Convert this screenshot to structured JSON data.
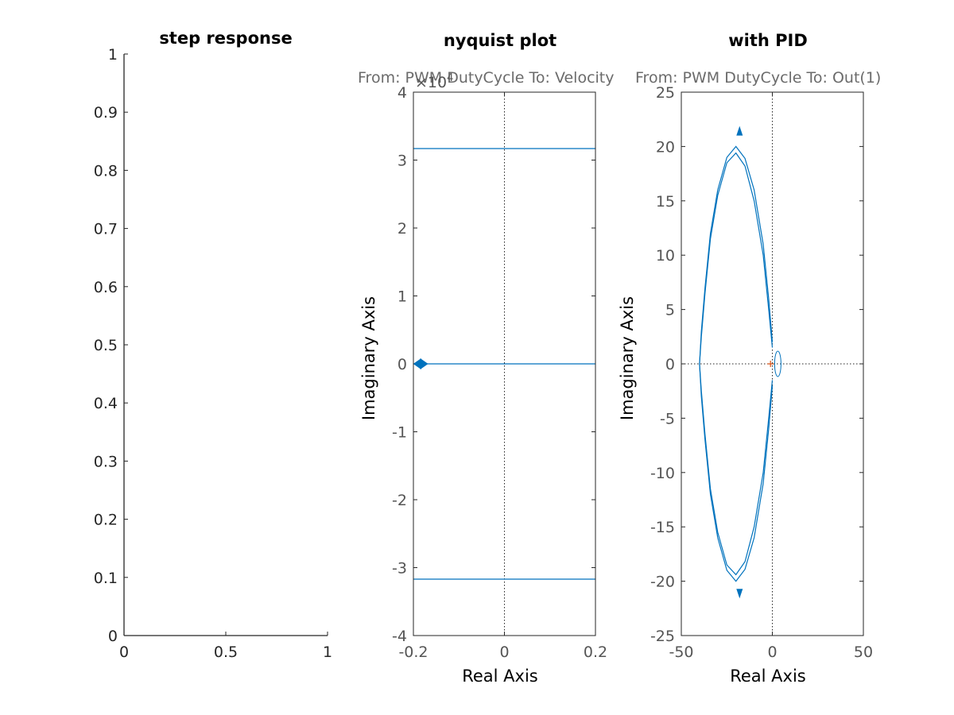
{
  "chart_data": [
    {
      "type": "line",
      "title": "step response",
      "xlabel": "",
      "ylabel": "",
      "xlim": [
        0,
        1
      ],
      "ylim": [
        0,
        1
      ],
      "xticks": [
        "0",
        "0.5",
        "1"
      ],
      "yticks": [
        "0",
        "0.1",
        "0.2",
        "0.3",
        "0.4",
        "0.5",
        "0.6",
        "0.7",
        "0.8",
        "0.9",
        "1"
      ],
      "series": []
    },
    {
      "type": "line",
      "title": "nyquist plot",
      "subtitle": "From: PWM DutyCycle  To: Velocity",
      "xlabel": "Real Axis",
      "ylabel": "Imaginary Axis",
      "xlim": [
        -0.2,
        0.2
      ],
      "ylim": [
        -4,
        4
      ],
      "y_exponent": "×10",
      "y_exponent_power": "4",
      "xticks": [
        "-0.2",
        "0",
        "0.2"
      ],
      "yticks": [
        "-4",
        "-3",
        "-2",
        "-1",
        "0",
        "1",
        "2",
        "3",
        "4"
      ],
      "color": "#0072bd",
      "series": [
        {
          "x": [
            -0.2,
            0.2
          ],
          "y": [
            3.17,
            3.17
          ]
        },
        {
          "x": [
            -0.2,
            0.2
          ],
          "y": [
            0,
            0
          ]
        },
        {
          "x": [
            -0.2,
            0.2
          ],
          "y": [
            -3.17,
            -3.17
          ]
        }
      ]
    },
    {
      "type": "line",
      "title": "with PID",
      "subtitle": "From: PWM DutyCycle  To: Out(1)",
      "xlabel": "Real Axis",
      "ylabel": "Imaginary Axis",
      "xlim": [
        -50,
        50
      ],
      "ylim": [
        -25,
        25
      ],
      "xticks": [
        "-50",
        "0",
        "50"
      ],
      "yticks": [
        "-25",
        "-20",
        "-15",
        "-10",
        "-5",
        "0",
        "5",
        "10",
        "15",
        "20",
        "25"
      ],
      "color": "#0072bd",
      "critical_point_color": "#d95319",
      "series": [
        {
          "x": [
            0,
            -2,
            -5,
            -10,
            -15,
            -20,
            -25,
            -30,
            -34,
            -37,
            -39,
            -40,
            -39,
            -37,
            -34,
            -30,
            -25,
            -20,
            -15,
            -10,
            -5,
            -2,
            0
          ],
          "y": [
            2,
            6,
            11,
            16,
            18.9,
            20,
            19,
            16,
            12,
            7,
            3,
            0,
            -3,
            -7,
            -12,
            -16,
            -19,
            -20,
            -18.9,
            -16,
            -11,
            -6,
            -2
          ]
        },
        {
          "x": [
            0,
            -2,
            -5,
            -10,
            -15,
            -20,
            -25,
            -30,
            -34,
            -37,
            -39,
            -40,
            -39,
            -37,
            -34,
            -30,
            -25,
            -20,
            -15,
            -10,
            -5,
            -2,
            0
          ],
          "y": [
            1.5,
            5,
            10,
            15,
            18.2,
            19.4,
            18.5,
            15.5,
            11.5,
            6.5,
            2.5,
            0,
            -2.5,
            -6.5,
            -11.5,
            -15.5,
            -18.5,
            -19.4,
            -18.2,
            -15,
            -10,
            -5,
            -1.5
          ]
        }
      ]
    }
  ]
}
